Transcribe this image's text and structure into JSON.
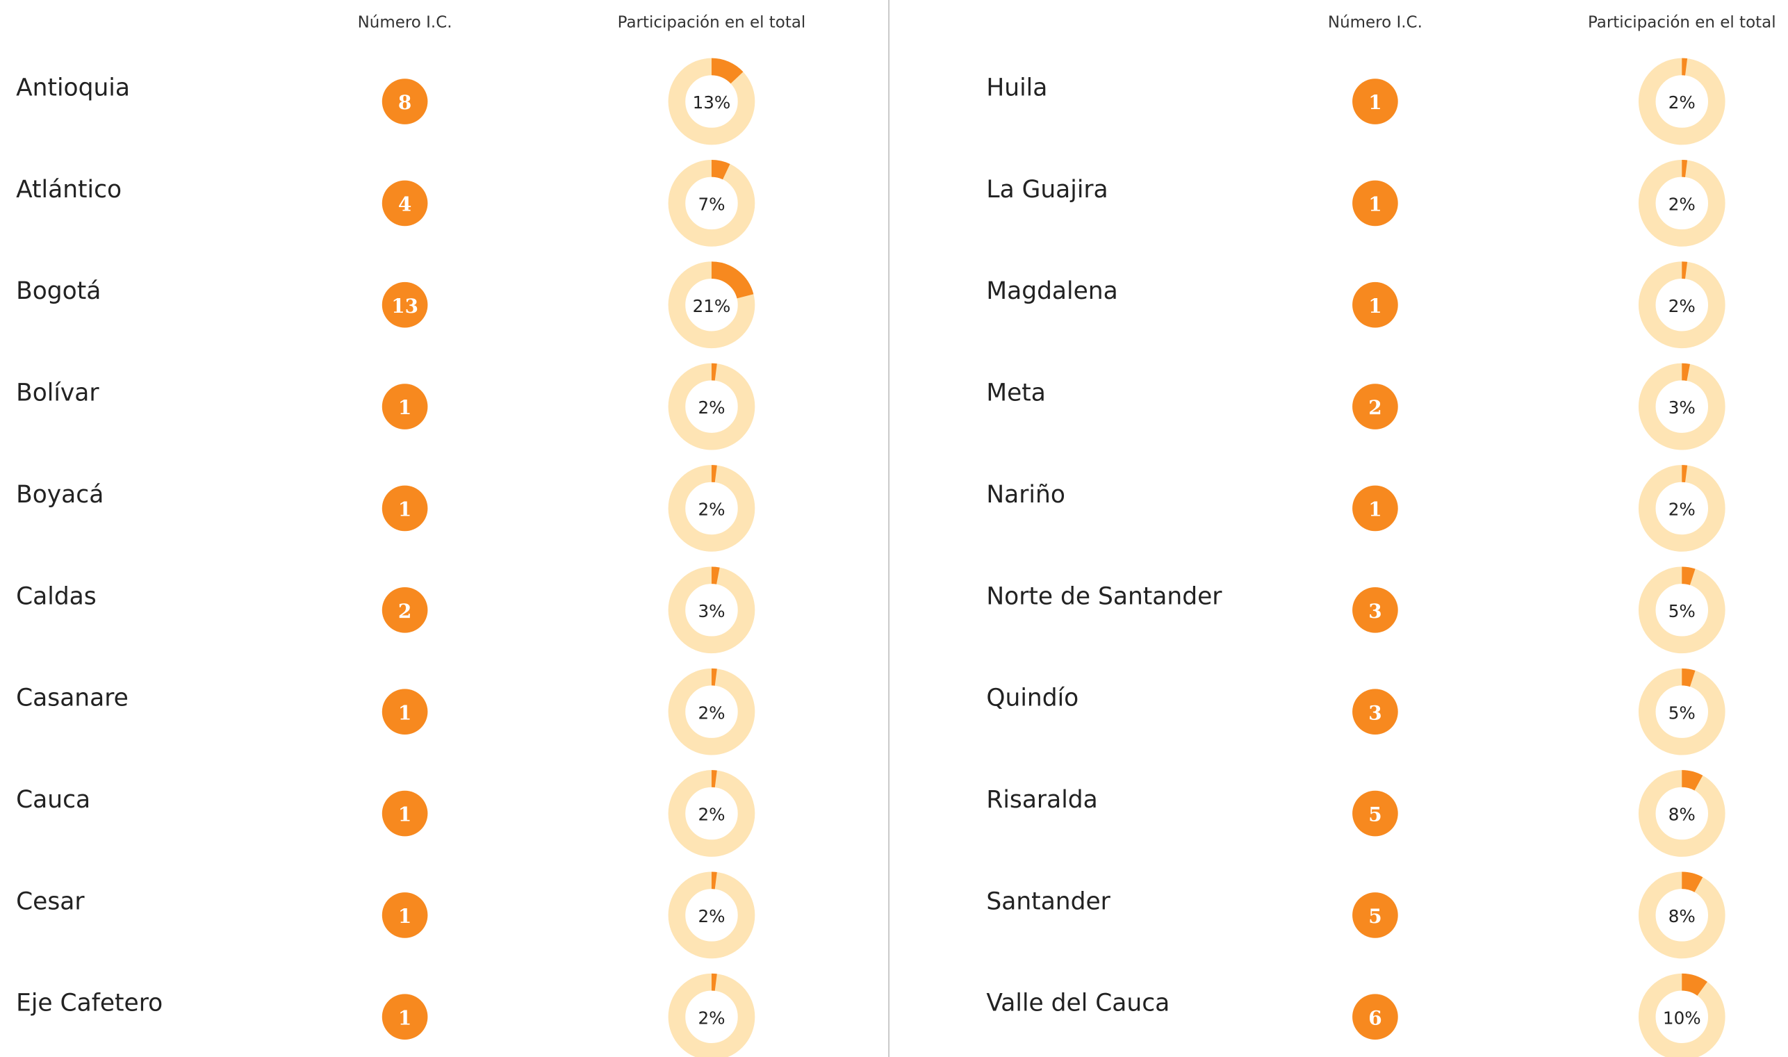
{
  "panels": [
    {
      "headers": [
        "Número I.C.",
        "Participación en el total"
      ],
      "rows": [
        {
          "name": "Antioquia",
          "count": 8,
          "share": 13,
          "share_label": "13%"
        },
        {
          "name": "Atlántico",
          "count": 4,
          "share": 7,
          "share_label": "7%"
        },
        {
          "name": "Bogotá",
          "count": 13,
          "share": 21,
          "share_label": "21%"
        },
        {
          "name": "Bolívar",
          "count": 1,
          "share": 2,
          "share_label": "2%"
        },
        {
          "name": "Boyacá",
          "count": 1,
          "share": 2,
          "share_label": "2%"
        },
        {
          "name": "Caldas",
          "count": 2,
          "share": 3,
          "share_label": "3%"
        },
        {
          "name": "Casanare",
          "count": 1,
          "share": 2,
          "share_label": "2%"
        },
        {
          "name": "Cauca",
          "count": 1,
          "share": 2,
          "share_label": "2%"
        },
        {
          "name": "Cesar",
          "count": 1,
          "share": 2,
          "share_label": "2%"
        },
        {
          "name": "Eje Cafetero",
          "count": 1,
          "share": 2,
          "share_label": "2%"
        }
      ]
    },
    {
      "headers": [
        "Número I.C.",
        "Participación en el total"
      ],
      "rows": [
        {
          "name": "Huila",
          "count": 1,
          "share": 2,
          "share_label": "2%"
        },
        {
          "name": "La Guajira",
          "count": 1,
          "share": 2,
          "share_label": "2%"
        },
        {
          "name": "Magdalena",
          "count": 1,
          "share": 2,
          "share_label": "2%"
        },
        {
          "name": "Meta",
          "count": 2,
          "share": 3,
          "share_label": "3%"
        },
        {
          "name": "Nariño",
          "count": 1,
          "share": 2,
          "share_label": "2%"
        },
        {
          "name": "Norte de Santander",
          "count": 3,
          "share": 5,
          "share_label": "5%"
        },
        {
          "name": "Quindío",
          "count": 3,
          "share": 5,
          "share_label": "5%"
        },
        {
          "name": "Risaralda",
          "count": 5,
          "share": 8,
          "share_label": "8%"
        },
        {
          "name": "Santander",
          "count": 5,
          "share": 8,
          "share_label": "8%"
        },
        {
          "name": "Valle del Cauca",
          "count": 6,
          "share": 10,
          "share_label": "10%"
        }
      ]
    }
  ]
}
